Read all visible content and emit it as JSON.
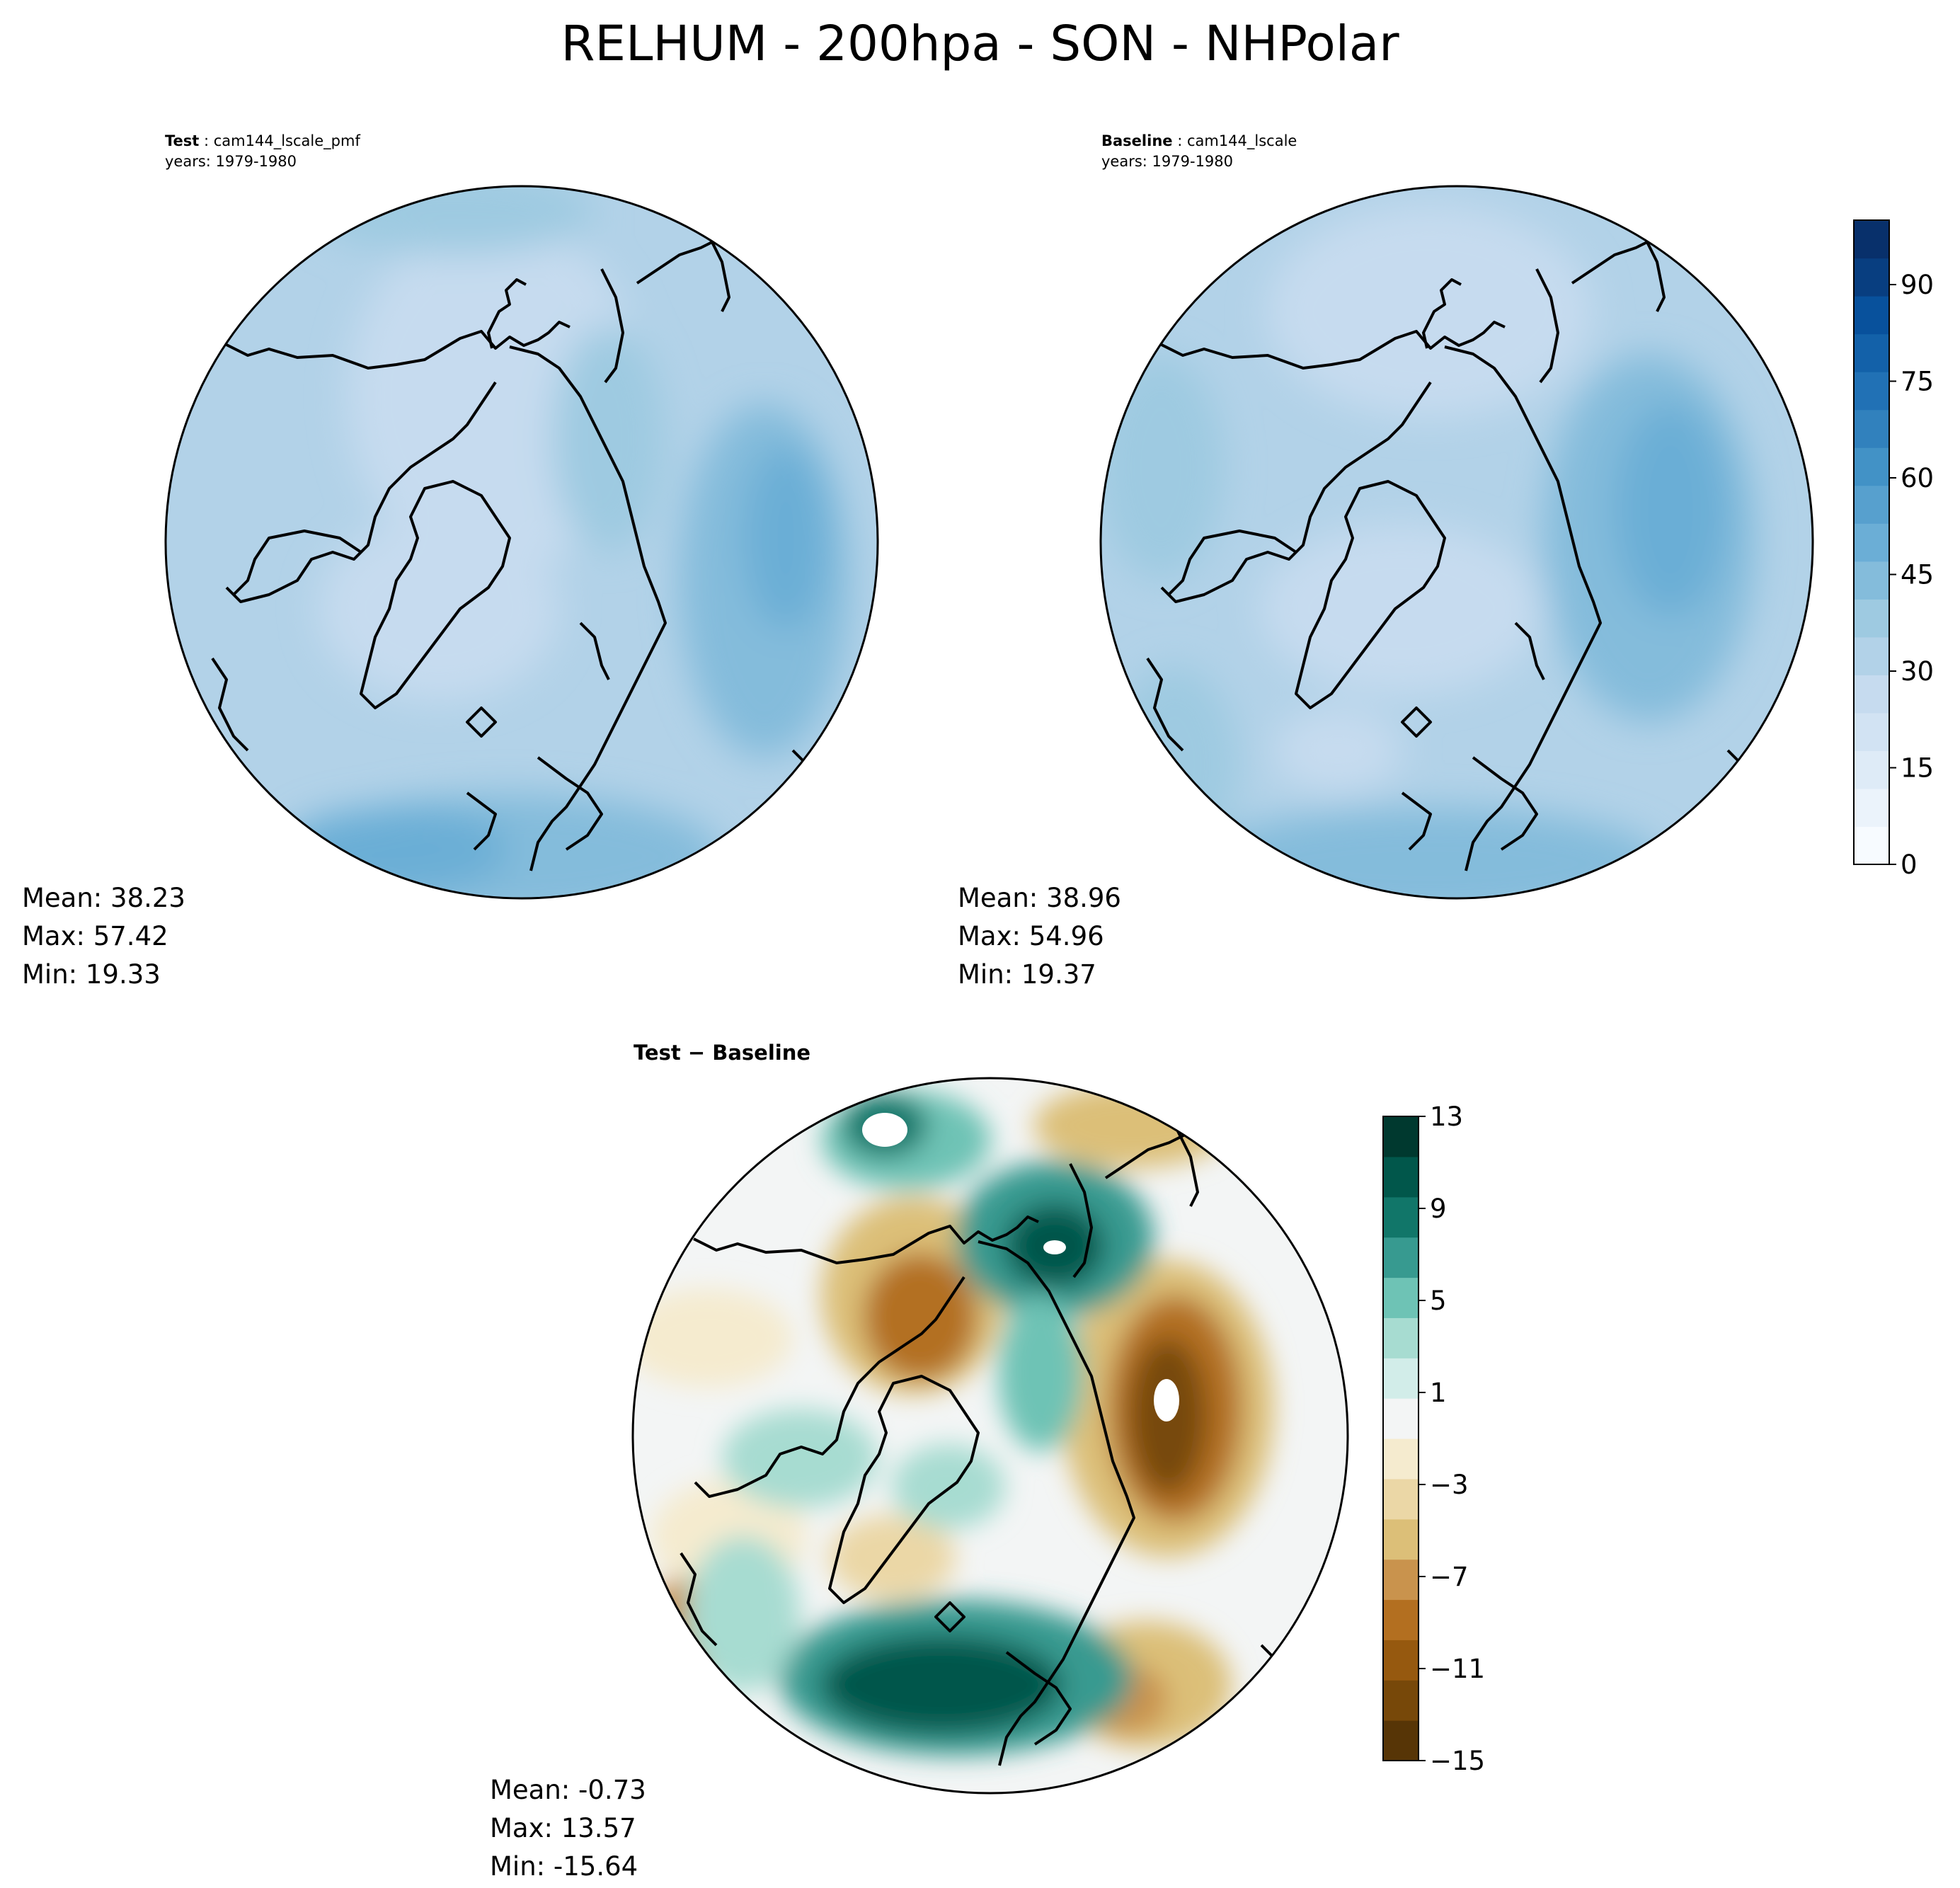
{
  "title": "RELHUM - 200hpa - SON - NHPolar",
  "panels": [
    {
      "id": "test",
      "label": "Test",
      "case": "cam144_lscale_pmf",
      "years": "years: 1979-1980",
      "stats": {
        "mean": "Mean: 38.23",
        "max": "Max: 57.42",
        "min": "Min: 19.33"
      }
    },
    {
      "id": "baseline",
      "label": "Baseline",
      "case": "cam144_lscale",
      "years": "years: 1979-1980",
      "stats": {
        "mean": "Mean: 38.96",
        "max": "Max: 54.96",
        "min": "Min: 19.37"
      }
    },
    {
      "id": "diff",
      "label": "Test − Baseline",
      "stats": {
        "mean": "Mean: -0.73",
        "max": "Max: 13.57",
        "min": "Min: -15.64"
      }
    }
  ],
  "chart_data": [
    {
      "type": "heatmap",
      "projection": "north-polar-stereographic",
      "variable": "RELHUM",
      "colormap": "Blues",
      "colorbar": {
        "min": 0,
        "max": 100,
        "step": 5,
        "ticks": [
          0,
          15,
          30,
          45,
          60,
          75,
          90
        ]
      }
    },
    {
      "type": "heatmap",
      "projection": "north-polar-stereographic",
      "variable": "RELHUM difference",
      "colormap": "BrBG",
      "colorbar": {
        "min": -15,
        "max": 13,
        "step": 2,
        "ticks": [
          -15,
          -11,
          -7,
          -3,
          1,
          5,
          9,
          13
        ]
      }
    }
  ],
  "colors": {
    "blues": [
      "#f7fbff",
      "#ebf3fb",
      "#deebf7",
      "#d2e3f3",
      "#c6dbef",
      "#b2d2e8",
      "#9ecae1",
      "#84bcdb",
      "#6baed6",
      "#57a0ce",
      "#4292c6",
      "#3181bd",
      "#2171b5",
      "#1361a9",
      "#08519c",
      "#083e80",
      "#08306b"
    ],
    "brbg": [
      "#573506",
      "#774809",
      "#96590f",
      "#b36f20",
      "#c9934d",
      "#dcbf78",
      "#ebd7a6",
      "#f5ebcf",
      "#f3f5f5",
      "#d2ede9",
      "#a7dcd1",
      "#6ec3b5",
      "#379a90",
      "#117669",
      "#01574b",
      "#00392f"
    ],
    "land": "#000000"
  }
}
